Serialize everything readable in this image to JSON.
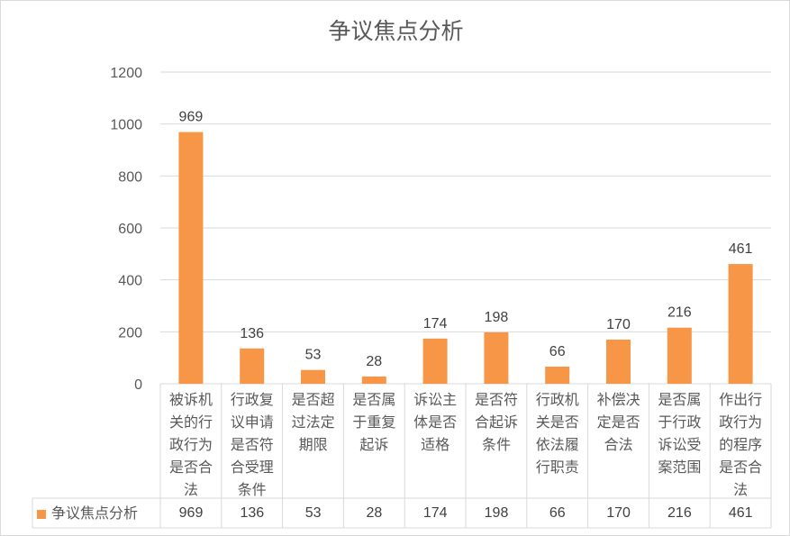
{
  "chart_data": {
    "type": "bar",
    "title": "争议焦点分析",
    "categories": [
      "被诉机关的行政行为是否合法",
      "行政复议申请是否符合受理条件",
      "是否超过法定期限",
      "是否属于重复起诉",
      "诉讼主体是否适格",
      "是否符合起诉条件",
      "行政机关是否依法履行职责",
      "补偿决定是否合法",
      "是否属于行政诉讼受案范围",
      "作出行政行为的程序是否合法"
    ],
    "series": [
      {
        "name": "争议焦点分析",
        "values": [
          969,
          136,
          53,
          28,
          174,
          198,
          66,
          170,
          216,
          461
        ],
        "color": "#F79646"
      }
    ],
    "ylim": [
      0,
      1200
    ],
    "yticks": [
      0,
      200,
      400,
      600,
      800,
      1000,
      1200
    ],
    "grid": true,
    "legend": "data-table-left"
  }
}
